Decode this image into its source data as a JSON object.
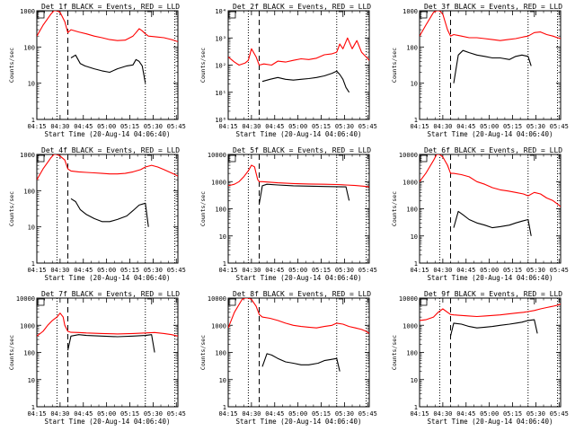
{
  "figure": {
    "xlabel": "Start Time (20-Aug-14 04:06:40)",
    "ylabel": "Counts/sec",
    "x_tick_labels": [
      "04:15",
      "04:30",
      "04:45",
      "05:00",
      "05:15",
      "05:30",
      "05:45"
    ]
  },
  "chart_data": [
    {
      "type": "line",
      "title": "Det 1f BLACK = Events, RED = LLD",
      "ylog": true,
      "ylim": [
        1,
        1000
      ],
      "y_tick_labels": [
        "1",
        "10",
        "100",
        "1000"
      ],
      "xlim_min": [
        8,
        99
      ],
      "markers": {
        "dotted": [
          21,
          78,
          97
        ],
        "dashed": [
          28
        ]
      },
      "series": [
        {
          "name": "Events",
          "color": "#000000",
          "x": [
            30,
            33,
            36,
            39,
            45,
            50,
            55,
            60,
            66,
            70,
            72,
            74,
            76,
            78
          ],
          "y": [
            50,
            60,
            35,
            30,
            25,
            22,
            20,
            25,
            30,
            32,
            45,
            40,
            30,
            10
          ]
        },
        {
          "name": "LLD",
          "color": "#ff0000",
          "x": [
            8,
            12,
            17,
            19,
            21,
            23,
            26,
            28,
            30,
            35,
            40,
            45,
            50,
            55,
            60,
            65,
            70,
            72,
            74,
            76,
            78,
            80,
            85,
            90,
            95,
            99
          ],
          "y": [
            200,
            400,
            800,
            1000,
            1000,
            900,
            500,
            250,
            300,
            260,
            230,
            200,
            180,
            160,
            150,
            155,
            200,
            250,
            320,
            280,
            230,
            200,
            190,
            180,
            160,
            140
          ]
        }
      ]
    },
    {
      "type": "line",
      "title": "Det 2f BLACK = Events, RED = LLD",
      "ylog": true,
      "ylim": [
        1,
        10000
      ],
      "y_tick_labels": [
        "10⁰",
        "10¹",
        "10²",
        "10³",
        "10⁴"
      ],
      "xlim_min": [
        8,
        99
      ],
      "markers": {
        "dotted": [
          21,
          78,
          97
        ],
        "dashed": [
          28
        ]
      },
      "series": [
        {
          "name": "Events",
          "color": "#000000",
          "x": [
            30,
            35,
            40,
            45,
            50,
            55,
            60,
            65,
            70,
            75,
            78,
            80,
            82,
            84,
            86
          ],
          "y": [
            25,
            30,
            35,
            30,
            28,
            30,
            32,
            35,
            40,
            50,
            60,
            45,
            30,
            15,
            10
          ]
        },
        {
          "name": "LLD",
          "color": "#ff0000",
          "x": [
            8,
            12,
            15,
            19,
            21,
            23,
            26,
            28,
            31,
            36,
            40,
            45,
            50,
            55,
            60,
            65,
            70,
            75,
            78,
            80,
            82,
            85,
            88,
            91,
            94,
            97,
            99
          ],
          "y": [
            200,
            130,
            100,
            120,
            150,
            400,
            200,
            100,
            110,
            100,
            140,
            130,
            150,
            170,
            160,
            180,
            240,
            260,
            300,
            600,
            400,
            1000,
            400,
            800,
            300,
            200,
            150
          ]
        }
      ]
    },
    {
      "type": "line",
      "title": "Det 3f BLACK = Events, RED = LLD",
      "ylog": true,
      "ylim": [
        1,
        1000
      ],
      "y_tick_labels": [
        "1",
        "10",
        "100",
        "1000"
      ],
      "xlim_min": [
        8,
        99
      ],
      "markers": {
        "dotted": [
          21,
          78,
          97
        ],
        "dashed": [
          28
        ]
      },
      "series": [
        {
          "name": "Events",
          "color": "#000000",
          "x": [
            30,
            33,
            36,
            40,
            45,
            50,
            55,
            60,
            66,
            70,
            74,
            78,
            80
          ],
          "y": [
            10,
            60,
            80,
            70,
            60,
            55,
            50,
            50,
            45,
            55,
            60,
            55,
            30
          ]
        },
        {
          "name": "LLD",
          "color": "#ff0000",
          "x": [
            8,
            12,
            17,
            19,
            21,
            23,
            26,
            28,
            30,
            35,
            40,
            45,
            50,
            55,
            60,
            65,
            70,
            75,
            78,
            82,
            86,
            90,
            94,
            97,
            99
          ],
          "y": [
            200,
            400,
            900,
            1000,
            1000,
            800,
            300,
            200,
            220,
            200,
            180,
            180,
            170,
            160,
            150,
            160,
            170,
            190,
            200,
            250,
            260,
            220,
            200,
            180,
            170
          ]
        }
      ]
    },
    {
      "type": "line",
      "title": "Det 4f BLACK = Events, RED = LLD",
      "ylog": true,
      "ylim": [
        1,
        1000
      ],
      "y_tick_labels": [
        "1",
        "10",
        "100",
        "1000"
      ],
      "xlim_min": [
        8,
        99
      ],
      "markers": {
        "dotted": [
          21,
          78,
          97
        ],
        "dashed": [
          28
        ]
      },
      "series": [
        {
          "name": "Events",
          "color": "#000000",
          "x": [
            30,
            33,
            36,
            40,
            45,
            50,
            55,
            60,
            66,
            70,
            74,
            78,
            80
          ],
          "y": [
            60,
            50,
            30,
            22,
            17,
            14,
            14,
            16,
            20,
            28,
            40,
            45,
            10
          ]
        },
        {
          "name": "LLD",
          "color": "#ff0000",
          "x": [
            8,
            12,
            17,
            19,
            21,
            23,
            26,
            28,
            30,
            35,
            40,
            45,
            50,
            55,
            60,
            65,
            70,
            75,
            78,
            82,
            86,
            90,
            94,
            97,
            99
          ],
          "y": [
            200,
            400,
            800,
            1000,
            1000,
            900,
            700,
            400,
            350,
            330,
            320,
            310,
            300,
            290,
            290,
            300,
            330,
            380,
            450,
            500,
            450,
            380,
            320,
            280,
            250
          ]
        }
      ]
    },
    {
      "type": "line",
      "title": "Det 5f BLACK = Events, RED = LLD",
      "ylog": true,
      "ylim": [
        1,
        10000
      ],
      "y_tick_labels": [
        "1",
        "10",
        "100",
        "1000",
        "10000"
      ],
      "xlim_min": [
        8,
        99
      ],
      "markers": {
        "dotted": [
          21,
          78,
          97
        ],
        "dashed": [
          28
        ]
      },
      "series": [
        {
          "name": "Events",
          "color": "#000000",
          "x": [
            28,
            30,
            33,
            40,
            50,
            60,
            70,
            78,
            84,
            86
          ],
          "y": [
            150,
            700,
            800,
            750,
            700,
            680,
            660,
            650,
            640,
            200
          ]
        },
        {
          "name": "LLD",
          "color": "#ff0000",
          "x": [
            8,
            12,
            15,
            18,
            21,
            23,
            25,
            26,
            27,
            28,
            30,
            35,
            40,
            50,
            60,
            70,
            78,
            84,
            90,
            95,
            99
          ],
          "y": [
            700,
            800,
            1000,
            1500,
            2500,
            4000,
            3500,
            2000,
            1200,
            1000,
            1000,
            950,
            900,
            850,
            820,
            800,
            780,
            750,
            720,
            680,
            640
          ]
        }
      ]
    },
    {
      "type": "line",
      "title": "Det 6f BLACK = Events, RED = LLD",
      "ylog": true,
      "ylim": [
        1,
        10000
      ],
      "y_tick_labels": [
        "1",
        "10",
        "100",
        "1000",
        "10000"
      ],
      "xlim_min": [
        8,
        99
      ],
      "markers": {
        "dotted": [
          21,
          78,
          97
        ],
        "dashed": [
          28
        ]
      },
      "series": [
        {
          "name": "Events",
          "color": "#000000",
          "x": [
            30,
            33,
            36,
            40,
            45,
            50,
            55,
            60,
            66,
            70,
            74,
            78,
            80
          ],
          "y": [
            20,
            80,
            60,
            40,
            30,
            25,
            20,
            22,
            25,
            30,
            35,
            40,
            10
          ]
        },
        {
          "name": "LLD",
          "color": "#ff0000",
          "x": [
            8,
            12,
            17,
            19,
            21,
            23,
            26,
            28,
            30,
            35,
            40,
            45,
            50,
            55,
            60,
            65,
            70,
            75,
            78,
            82,
            86,
            90,
            94,
            97,
            99
          ],
          "y": [
            1000,
            2000,
            6000,
            10000,
            10000,
            8000,
            4000,
            2000,
            2000,
            1800,
            1500,
            1000,
            800,
            600,
            500,
            450,
            400,
            350,
            300,
            400,
            350,
            250,
            200,
            150,
            120
          ]
        }
      ]
    },
    {
      "type": "line",
      "title": "Det 7f BLACK = Events, RED = LLD",
      "ylog": true,
      "ylim": [
        1,
        10000
      ],
      "y_tick_labels": [
        "1",
        "10",
        "100",
        "1000",
        "10000"
      ],
      "xlim_min": [
        8,
        99
      ],
      "markers": {
        "dotted": [
          21,
          78,
          97
        ],
        "dashed": [
          28
        ]
      },
      "series": [
        {
          "name": "Events",
          "color": "#000000",
          "x": [
            28,
            30,
            35,
            40,
            50,
            60,
            70,
            78,
            82,
            84
          ],
          "y": [
            120,
            400,
            450,
            420,
            400,
            380,
            400,
            420,
            450,
            100
          ]
        },
        {
          "name": "LLD",
          "color": "#ff0000",
          "x": [
            8,
            12,
            15,
            18,
            21,
            23,
            25,
            26,
            28,
            30,
            35,
            40,
            50,
            60,
            70,
            78,
            84,
            90,
            95,
            99
          ],
          "y": [
            400,
            600,
            1000,
            1500,
            2000,
            2800,
            2000,
            1000,
            600,
            550,
            540,
            520,
            500,
            480,
            500,
            520,
            540,
            500,
            450,
            400
          ]
        }
      ]
    },
    {
      "type": "line",
      "title": "Det 8f BLACK = Events, RED = LLD",
      "ylog": true,
      "ylim": [
        1,
        10000
      ],
      "y_tick_labels": [
        "1",
        "10",
        "100",
        "1000",
        "10000"
      ],
      "xlim_min": [
        8,
        99
      ],
      "markers": {
        "dotted": [
          21,
          78,
          97
        ],
        "dashed": [
          28
        ]
      },
      "series": [
        {
          "name": "Events",
          "color": "#000000",
          "x": [
            30,
            33,
            36,
            40,
            45,
            50,
            55,
            60,
            66,
            70,
            74,
            78,
            80
          ],
          "y": [
            30,
            90,
            80,
            60,
            45,
            40,
            35,
            35,
            40,
            50,
            55,
            60,
            20
          ]
        },
        {
          "name": "LLD",
          "color": "#ff0000",
          "x": [
            8,
            12,
            17,
            19,
            21,
            23,
            26,
            28,
            30,
            35,
            40,
            45,
            50,
            55,
            60,
            65,
            70,
            75,
            78,
            82,
            86,
            90,
            94,
            97,
            99
          ],
          "y": [
            800,
            3000,
            9000,
            10000,
            10000,
            9000,
            5000,
            2500,
            2000,
            1800,
            1500,
            1200,
            1000,
            900,
            850,
            800,
            900,
            1000,
            1200,
            1100,
            900,
            800,
            700,
            600,
            500
          ]
        }
      ]
    },
    {
      "type": "line",
      "title": "Det 9f BLACK = Events, RED = LLD",
      "ylog": true,
      "ylim": [
        1,
        10000
      ],
      "y_tick_labels": [
        "1",
        "10",
        "100",
        "1000",
        "10000"
      ],
      "xlim_min": [
        8,
        99
      ],
      "markers": {
        "dotted": [
          21,
          78,
          97
        ],
        "dashed": [
          28
        ]
      },
      "series": [
        {
          "name": "Events",
          "color": "#000000",
          "x": [
            28,
            30,
            35,
            40,
            45,
            50,
            55,
            60,
            66,
            70,
            74,
            78,
            82,
            84
          ],
          "y": [
            400,
            1200,
            1100,
            900,
            800,
            850,
            900,
            1000,
            1100,
            1200,
            1300,
            1500,
            1600,
            500
          ]
        },
        {
          "name": "LLD",
          "color": "#ff0000",
          "x": [
            8,
            12,
            17,
            20,
            23,
            26,
            28,
            30,
            35,
            40,
            45,
            50,
            55,
            60,
            65,
            70,
            75,
            78,
            82,
            86,
            90,
            94,
            97,
            99
          ],
          "y": [
            1500,
            1600,
            2000,
            3000,
            4000,
            3000,
            2500,
            2400,
            2300,
            2200,
            2100,
            2200,
            2300,
            2400,
            2600,
            2800,
            3000,
            3200,
            3500,
            4000,
            4500,
            5000,
            5500,
            6000
          ]
        }
      ]
    }
  ]
}
